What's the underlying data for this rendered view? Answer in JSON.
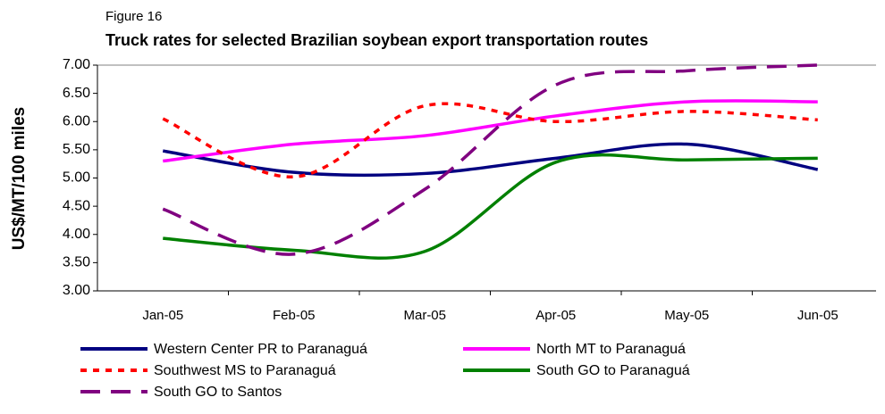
{
  "chart_data": {
    "type": "line",
    "figure_label": "Figure 16",
    "title": "Truck rates for selected Brazilian soybean export transportation routes",
    "y_label": "US$/MT/100 miles",
    "categories": [
      "Jan-05",
      "Feb-05",
      "Mar-05",
      "Apr-05",
      "May-05",
      "Jun-05"
    ],
    "ylim": [
      3,
      7
    ],
    "yticks": [
      {
        "value": 3,
        "label": "3.00"
      },
      {
        "value": 3.5,
        "label": "3.50"
      },
      {
        "value": 4,
        "label": "4.00"
      },
      {
        "value": 4.5,
        "label": "4.50"
      },
      {
        "value": 5,
        "label": "5.00"
      },
      {
        "value": 5.5,
        "label": "5.50"
      },
      {
        "value": 6,
        "label": "6.00"
      },
      {
        "value": 6.5,
        "label": "6.50"
      },
      {
        "value": 7,
        "label": "7.00"
      }
    ],
    "grid": false,
    "smooth": true,
    "series": [
      {
        "name": "Western Center PR to Paranaguá",
        "color": "#000080",
        "dash": "solid",
        "values": [
          5.48,
          5.1,
          5.08,
          5.35,
          5.6,
          5.15
        ]
      },
      {
        "name": "North MT to Paranaguá",
        "color": "#ff00ff",
        "dash": "solid",
        "values": [
          5.3,
          5.6,
          5.75,
          6.1,
          6.35,
          6.35
        ]
      },
      {
        "name": "Southwest MS to Paranaguá",
        "color": "#ff0000",
        "dash": "dot",
        "values": [
          6.05,
          5.02,
          6.28,
          6.0,
          6.18,
          6.03
        ]
      },
      {
        "name": "South GO to Paranaguá",
        "color": "#008000",
        "dash": "solid",
        "values": [
          3.93,
          3.72,
          3.7,
          5.28,
          5.32,
          5.35
        ]
      },
      {
        "name": "South GO to Santos",
        "color": "#800080",
        "dash": "dash",
        "values": [
          4.45,
          3.65,
          4.8,
          6.65,
          6.9,
          7.0
        ]
      }
    ]
  }
}
